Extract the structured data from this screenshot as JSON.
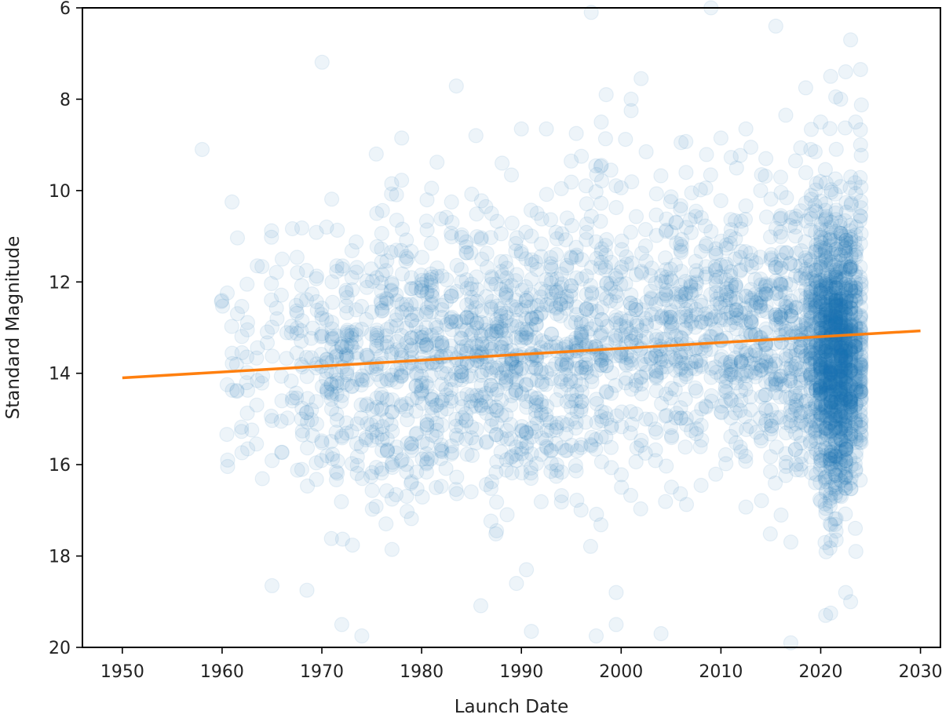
{
  "chart_data": {
    "type": "scatter",
    "title": "",
    "xlabel": "Launch Date",
    "ylabel": "Standard Magnitude",
    "xlim": [
      1946,
      2032
    ],
    "ylim": [
      20,
      6
    ],
    "y_inverted": true,
    "x_ticks": [
      1950,
      1960,
      1970,
      1980,
      1990,
      2000,
      2010,
      2020,
      2030
    ],
    "x_tick_labels": [
      "1950",
      "1960",
      "1970",
      "1980",
      "1990",
      "2000",
      "2010",
      "2020",
      "2030"
    ],
    "y_ticks": [
      6,
      8,
      10,
      12,
      14,
      16,
      18,
      20
    ],
    "y_tick_labels": [
      "6",
      "8",
      "10",
      "12",
      "14",
      "16",
      "18",
      "20"
    ],
    "grid": false,
    "legend": "none",
    "colors": {
      "points": "#1f77b4",
      "trend": "#ff7f0e",
      "axes": "#000000"
    },
    "point_alpha": 0.08,
    "trend_line": {
      "x": [
        1950,
        2030
      ],
      "y": [
        14.1,
        13.07
      ]
    },
    "outliers": [
      [
        1958.0,
        9.1
      ],
      [
        1961.0,
        10.25
      ],
      [
        1962.5,
        12.05
      ],
      [
        1965.0,
        18.65
      ],
      [
        1968.5,
        18.75
      ],
      [
        1972.0,
        19.5
      ],
      [
        1974.0,
        19.75
      ],
      [
        1975.5,
        10.5
      ],
      [
        1977.0,
        9.85
      ],
      [
        1978.0,
        8.85
      ],
      [
        1981.0,
        9.95
      ],
      [
        1983.0,
        10.25
      ],
      [
        1987.0,
        10.5
      ],
      [
        1989.5,
        18.6
      ],
      [
        1990.0,
        8.65
      ],
      [
        1990.5,
        18.3
      ],
      [
        1991.0,
        19.65
      ],
      [
        1992.5,
        8.65
      ],
      [
        1995.5,
        8.75
      ],
      [
        1997.0,
        6.1
      ],
      [
        1997.5,
        19.75
      ],
      [
        1998.0,
        8.5
      ],
      [
        1998.5,
        7.9
      ],
      [
        1999.5,
        19.5
      ],
      [
        1999.5,
        18.8
      ],
      [
        2001.0,
        8.0
      ],
      [
        2001.0,
        8.25
      ],
      [
        2002.0,
        7.55
      ],
      [
        2002.5,
        9.15
      ],
      [
        2004.0,
        19.7
      ],
      [
        2006.0,
        8.95
      ],
      [
        2009.0,
        6.0
      ],
      [
        2010.0,
        8.85
      ],
      [
        2012.5,
        8.65
      ],
      [
        2013.0,
        9.05
      ],
      [
        2014.5,
        9.3
      ],
      [
        2015.5,
        6.4
      ],
      [
        2016.5,
        8.35
      ],
      [
        2017.0,
        19.9
      ],
      [
        2018.5,
        7.75
      ],
      [
        2019.0,
        9.1
      ],
      [
        2020.0,
        8.5
      ],
      [
        2021.0,
        7.5
      ],
      [
        2021.5,
        7.95
      ],
      [
        2022.0,
        8.0
      ],
      [
        2022.5,
        7.4
      ],
      [
        2023.0,
        6.7
      ],
      [
        2023.5,
        8.5
      ],
      [
        2024.0,
        7.35
      ],
      [
        2024.0,
        9.0
      ],
      [
        2021.0,
        19.25
      ],
      [
        2022.5,
        18.8
      ],
      [
        2023.0,
        19.0
      ],
      [
        2020.5,
        19.3
      ]
    ],
    "bands": [
      {
        "x0": 1960,
        "x1": 1966,
        "count": 60,
        "center": 13.6,
        "spread": 1.6
      },
      {
        "x0": 1966,
        "x1": 1970,
        "count": 70,
        "center": 13.8,
        "spread": 1.7
      },
      {
        "x0": 1970,
        "x1": 1975,
        "count": 150,
        "center": 13.9,
        "spread": 1.6
      },
      {
        "x0": 1975,
        "x1": 1980,
        "count": 190,
        "center": 13.8,
        "spread": 1.6
      },
      {
        "x0": 1980,
        "x1": 1985,
        "count": 210,
        "center": 13.5,
        "spread": 1.5
      },
      {
        "x0": 1985,
        "x1": 1990,
        "count": 230,
        "center": 13.6,
        "spread": 1.6
      },
      {
        "x0": 1990,
        "x1": 1995,
        "count": 220,
        "center": 13.5,
        "spread": 1.6
      },
      {
        "x0": 1995,
        "x1": 2000,
        "count": 200,
        "center": 13.4,
        "spread": 1.7
      },
      {
        "x0": 2000,
        "x1": 2005,
        "count": 160,
        "center": 13.2,
        "spread": 1.5
      },
      {
        "x0": 2005,
        "x1": 2010,
        "count": 190,
        "center": 12.9,
        "spread": 1.5
      },
      {
        "x0": 2010,
        "x1": 2015,
        "count": 230,
        "center": 13.2,
        "spread": 1.5
      },
      {
        "x0": 2015,
        "x1": 2019,
        "count": 230,
        "center": 13.3,
        "spread": 1.6
      },
      {
        "x0": 2019,
        "x1": 2020,
        "count": 150,
        "center": 13.3,
        "spread": 1.6
      },
      {
        "x0": 2020,
        "x1": 2023,
        "count": 950,
        "center": 13.6,
        "spread": 1.45
      },
      {
        "x0": 2023,
        "x1": 2024.3,
        "count": 180,
        "center": 13.4,
        "spread": 1.5
      }
    ]
  }
}
